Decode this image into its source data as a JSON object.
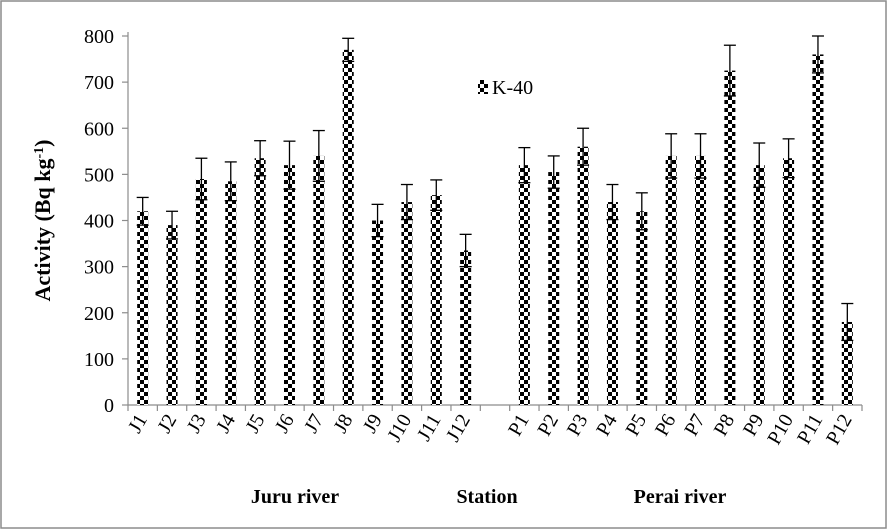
{
  "chart_data": {
    "type": "bar",
    "title": "",
    "xlabel": "",
    "ylabel": "Activity (Bq kg-1)",
    "ylim": [
      0,
      800
    ],
    "yticks": [
      0,
      100,
      200,
      300,
      400,
      500,
      600,
      700,
      800
    ],
    "grid": false,
    "legend_position": "top-center",
    "colors": {
      "bar_pattern": "#000000",
      "background": "#ffffff",
      "frame": "#8c8c8c"
    },
    "categories": [
      "J1",
      "J2",
      "J3",
      "J4",
      "J5",
      "J6",
      "J7",
      "J8",
      "J9",
      "J10",
      "J11",
      "J12",
      "P1",
      "P2",
      "P3",
      "P4",
      "P5",
      "P6",
      "P7",
      "P8",
      "P9",
      "P10",
      "P11",
      "P12"
    ],
    "series": [
      {
        "name": "K-40",
        "values": [
          420,
          390,
          490,
          485,
          535,
          520,
          540,
          770,
          400,
          440,
          455,
          335,
          520,
          505,
          560,
          440,
          420,
          540,
          540,
          725,
          520,
          535,
          760,
          180
        ],
        "errors": [
          30,
          30,
          45,
          42,
          38,
          52,
          55,
          25,
          35,
          38,
          33,
          35,
          38,
          35,
          40,
          38,
          40,
          48,
          48,
          55,
          48,
          42,
          40,
          40
        ]
      }
    ],
    "group_labels": [
      "Juru river",
      "Station",
      "Perai river"
    ]
  }
}
